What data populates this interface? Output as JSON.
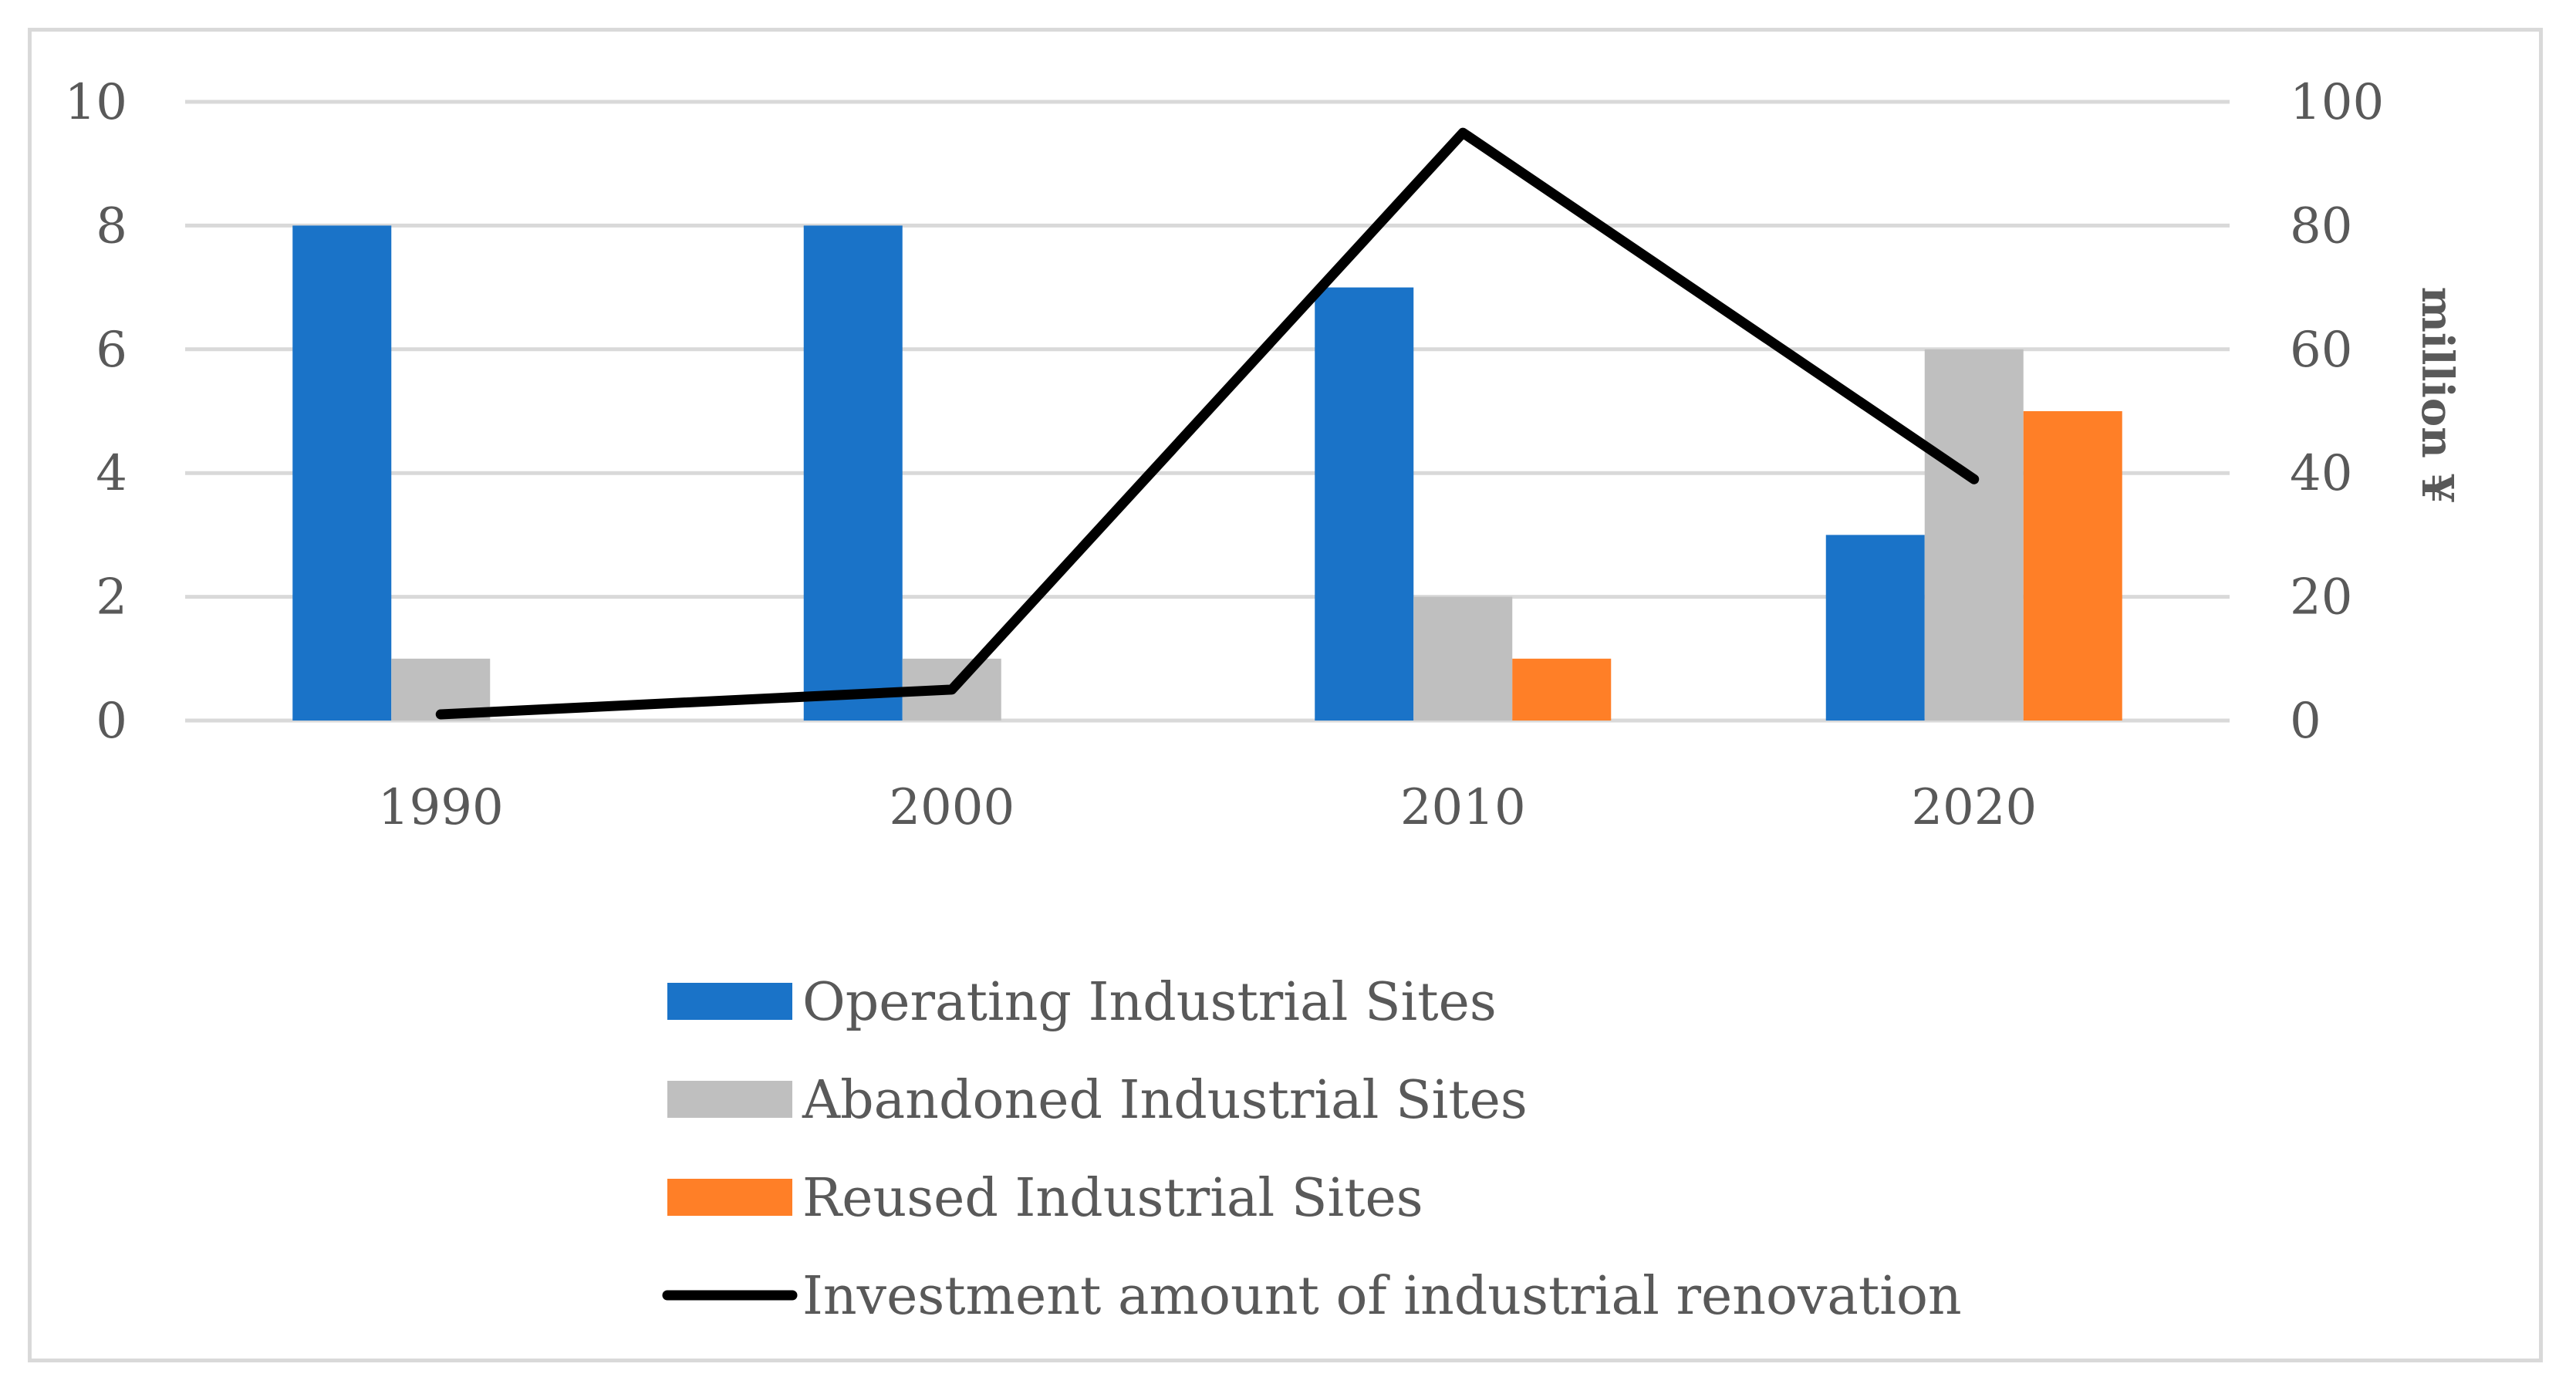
{
  "chart_data": {
    "type": "bar",
    "title": "",
    "categories": [
      "1990",
      "2000",
      "2010",
      "2020"
    ],
    "series": [
      {
        "name": "Operating Industrial Sites",
        "type": "bar",
        "axis": "left",
        "color": "#1a73c8",
        "values": [
          8,
          8,
          7,
          3
        ]
      },
      {
        "name": "Abandoned Industrial Sites",
        "type": "bar",
        "axis": "left",
        "color": "#bfbfbf",
        "values": [
          1,
          1,
          2,
          6
        ]
      },
      {
        "name": "Reused Industrial Sites",
        "type": "bar",
        "axis": "left",
        "color": "#ff7f27",
        "values": [
          0,
          0,
          1,
          5
        ]
      },
      {
        "name": "Investment amount of industrial renovation",
        "type": "line",
        "axis": "right",
        "color": "#000000",
        "values": [
          1,
          5,
          95,
          39
        ]
      }
    ],
    "y_left": {
      "label": "",
      "ylim": [
        0,
        10
      ],
      "ticks": [
        "0",
        "2",
        "4",
        "6",
        "8",
        "10"
      ]
    },
    "y_right": {
      "label": "million ¥",
      "ylim": [
        0,
        100
      ],
      "ticks": [
        "0",
        "20",
        "40",
        "60",
        "80",
        "100"
      ]
    },
    "grid": true,
    "legend_position": "bottom"
  }
}
